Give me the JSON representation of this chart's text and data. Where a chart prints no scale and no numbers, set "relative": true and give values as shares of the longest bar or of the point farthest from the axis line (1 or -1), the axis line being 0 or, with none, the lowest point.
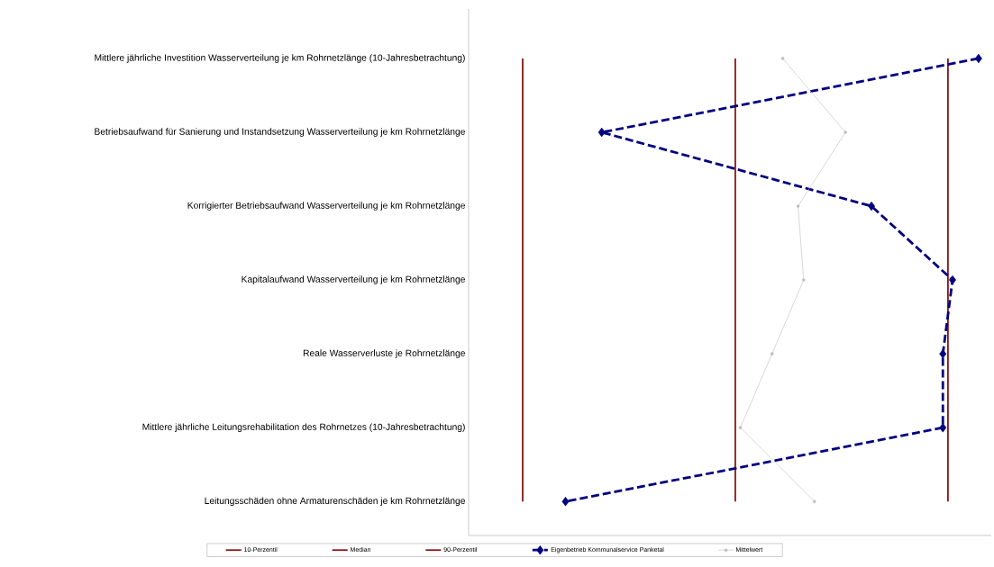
{
  "chart_data": {
    "type": "line",
    "orientation": "horizontal",
    "relative": true,
    "legend": "bottom",
    "categories": [
      "Mittlere jährliche Investition Wasserverteilung je km Rohrnetzlänge (10-Jahresbetrachtung)",
      "Betriebsaufwand für Sanierung und Instandsetzung Wasserverteilung je km Rohrnetzlänge",
      "Korrigierter Betriebsaufwand Wasserverteilung je km Rohrnetzlänge",
      "Kapitalaufwand Wasserverteilung je km Rohrnetzlänge",
      "Reale Wasserverluste je Rohrnetzlänge",
      "Mittlere jährliche Leitungsrehabilitation des Rohrnetzes (10-Jahresbetrachtung)",
      "Leitungsschäden ohne Armaturenschäden je km Rohrnetzlänge"
    ],
    "series": [
      {
        "name": "10-Perzentil",
        "color": "#8b1414",
        "marker": "none",
        "line_style": "solid",
        "values": [
          0.106,
          0.106,
          0.106,
          0.106,
          0.106,
          0.106,
          0.106
        ]
      },
      {
        "name": "Median",
        "color": "#8b1414",
        "marker": "none",
        "line_style": "solid",
        "values": [
          0.523,
          0.523,
          0.523,
          0.523,
          0.523,
          0.523,
          0.523
        ]
      },
      {
        "name": "90-Perzentil",
        "color": "#8b1414",
        "marker": "none",
        "line_style": "solid",
        "values": [
          0.94,
          0.94,
          0.94,
          0.94,
          0.94,
          0.94,
          0.94
        ]
      },
      {
        "name": "Eigenbetrieb Kommunalservice Panketal",
        "color": "#000080",
        "marker": "diamond",
        "line_style": "dashed",
        "values": [
          1.0,
          0.261,
          0.79,
          0.949,
          0.93,
          0.93,
          0.19
        ]
      },
      {
        "name": "Mittelwert",
        "color": "#c0c0c0",
        "marker": "circle",
        "line_style": "solid",
        "values": [
          0.616,
          0.739,
          0.646,
          0.657,
          0.595,
          0.533,
          0.678
        ]
      }
    ]
  }
}
